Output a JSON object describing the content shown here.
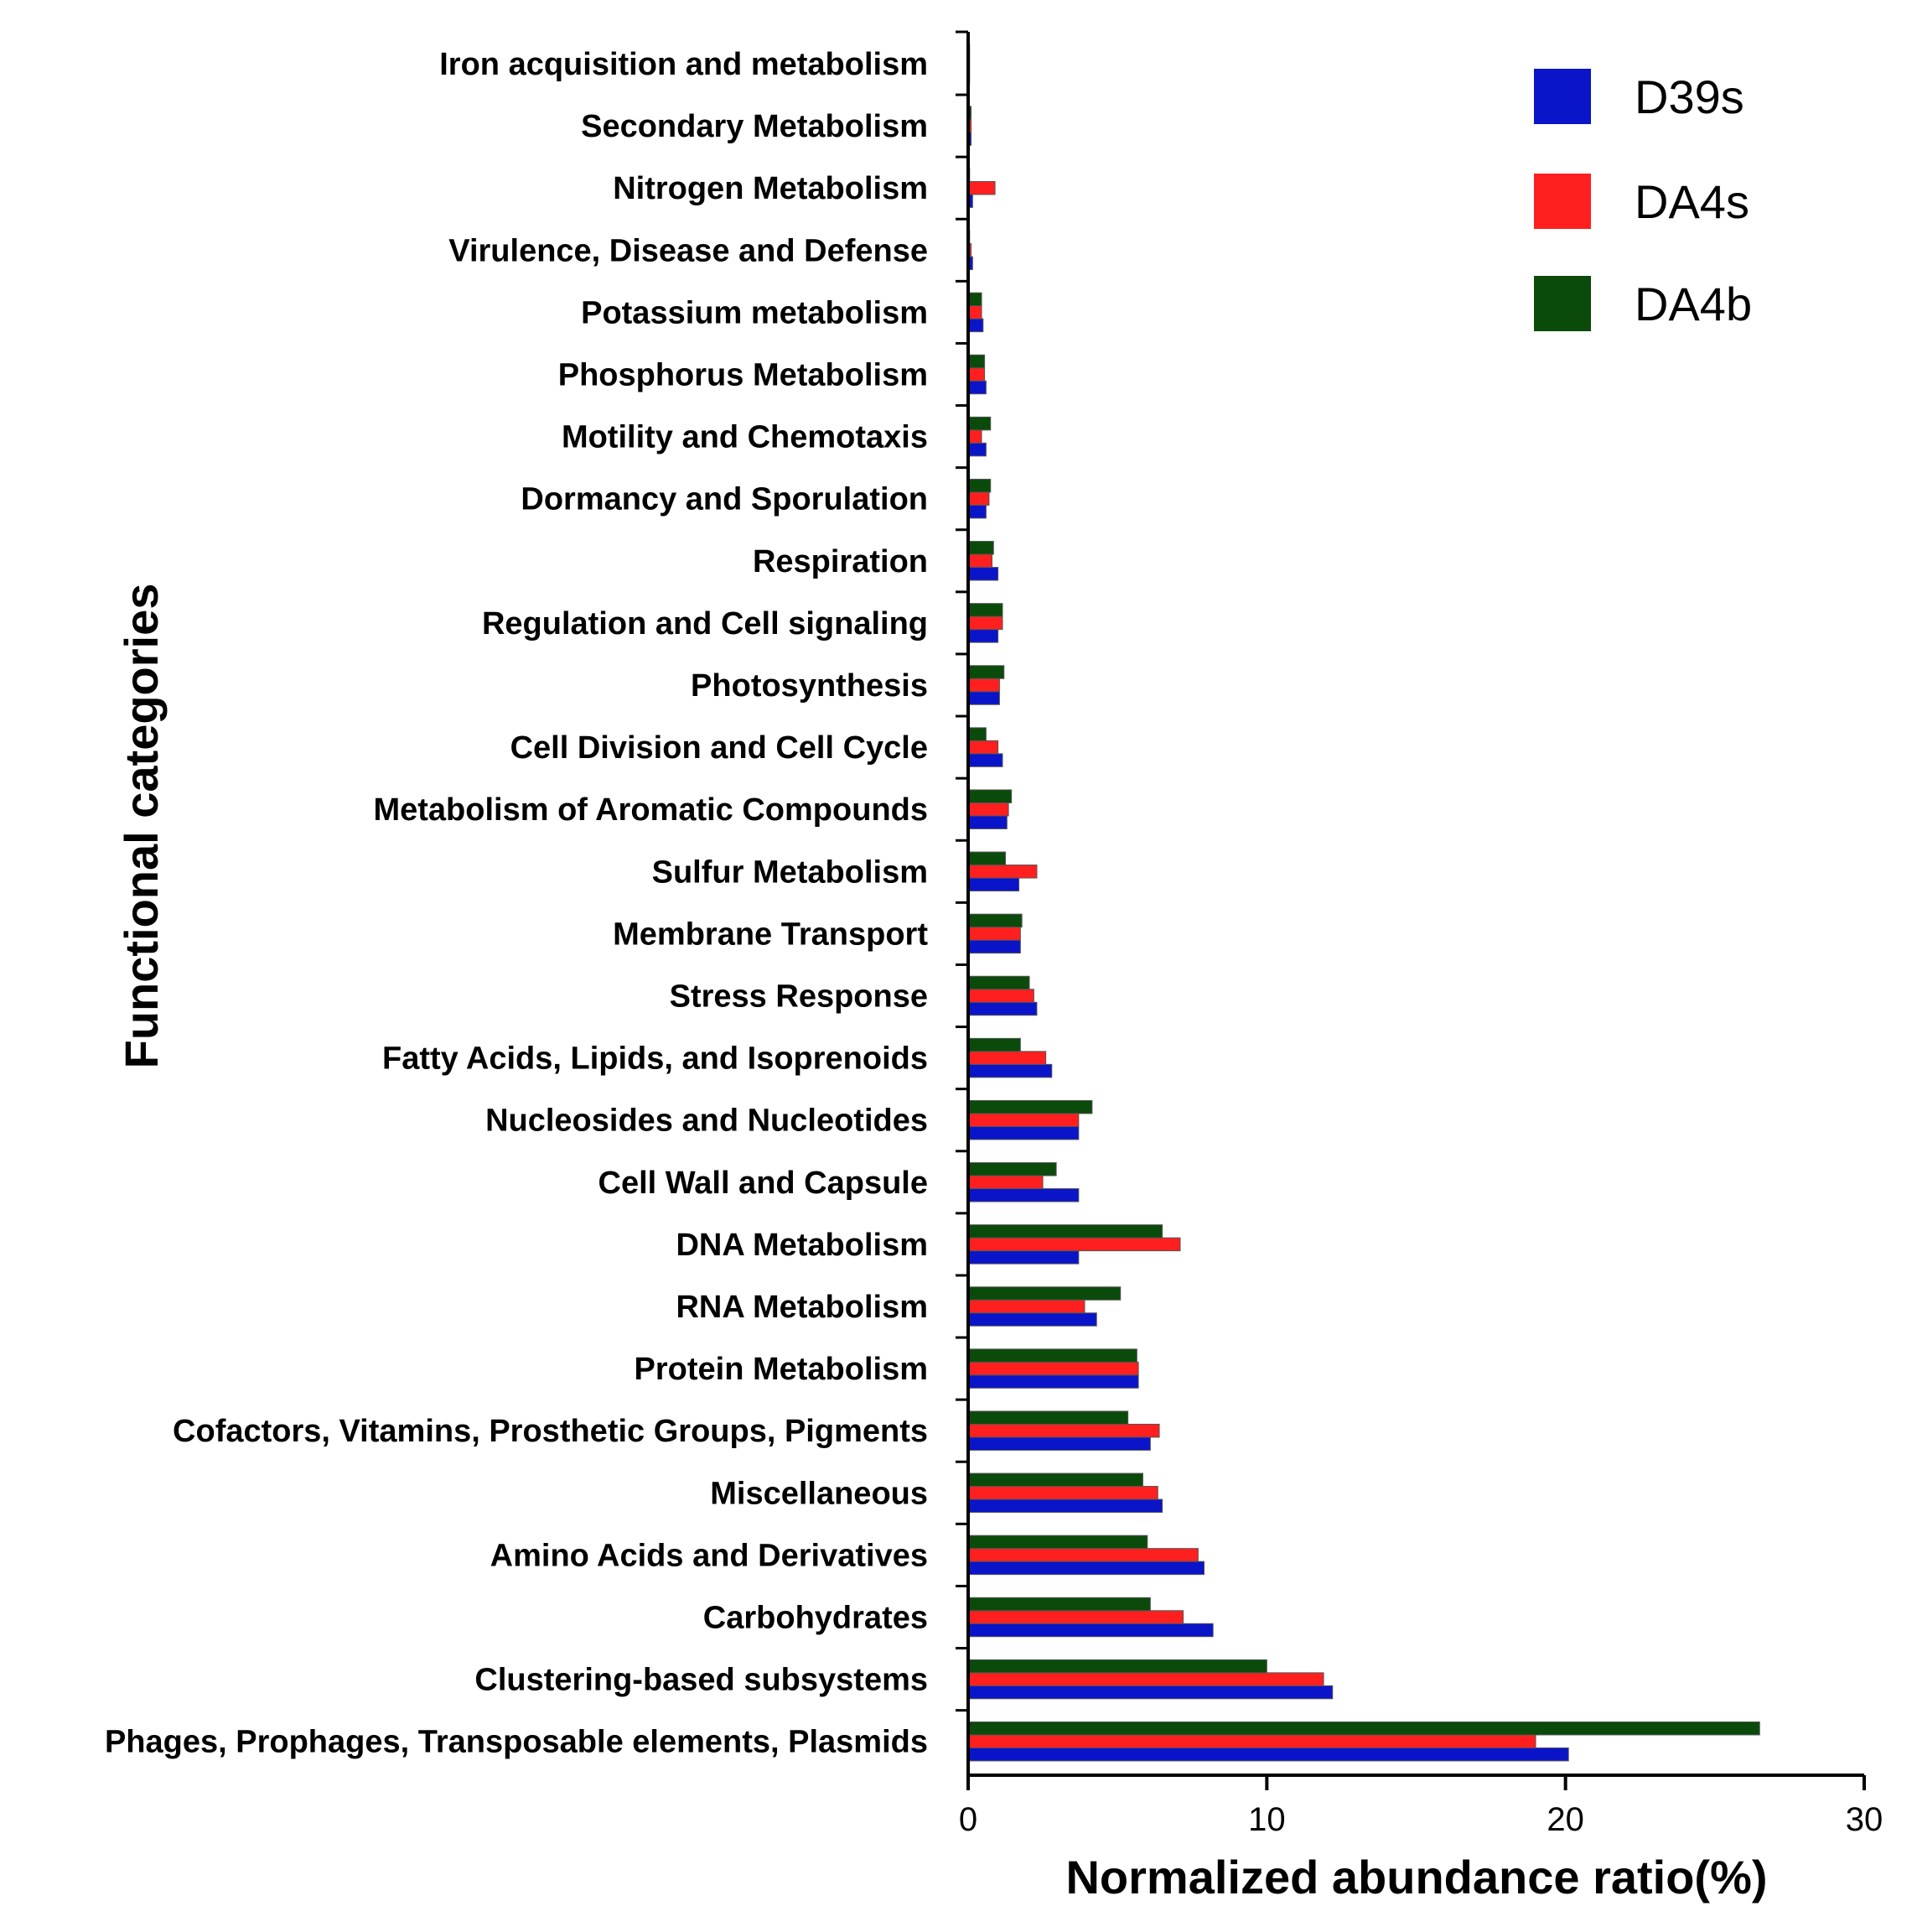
{
  "chart_data": {
    "type": "bar",
    "orientation": "horizontal",
    "title": "",
    "xlabel": "Normalized abundance ratio(%)",
    "ylabel": "Functional categories",
    "xlim": [
      0,
      30
    ],
    "xticks": [
      0,
      10,
      20,
      30
    ],
    "grid": false,
    "legend_position": "top-right",
    "categories": [
      "Iron acquisition and metabolism",
      "Secondary Metabolism",
      "Nitrogen Metabolism",
      "Virulence, Disease and Defense",
      "Potassium metabolism",
      "Phosphorus Metabolism",
      "Motility and Chemotaxis",
      "Dormancy and Sporulation",
      "Respiration",
      "Regulation and Cell signaling",
      "Photosynthesis",
      "Cell Division and Cell Cycle",
      "Metabolism of Aromatic Compounds",
      "Sulfur Metabolism",
      "Membrane Transport",
      "Stress Response",
      "Fatty Acids, Lipids, and Isoprenoids",
      "Nucleosides and Nucleotides",
      "Cell Wall and Capsule",
      "DNA Metabolism",
      "RNA Metabolism",
      "Protein Metabolism",
      "Cofactors, Vitamins, Prosthetic Groups, Pigments",
      "Miscellaneous",
      "Amino Acids and Derivatives",
      "Carbohydrates",
      "Clustering-based subsystems",
      "Phages, Prophages, Transposable elements, Plasmids"
    ],
    "series": [
      {
        "name": "D39s",
        "color": "#0a14c8",
        "values": [
          0.05,
          0.1,
          0.15,
          0.15,
          0.5,
          0.6,
          0.6,
          0.6,
          1.0,
          1.0,
          1.05,
          1.15,
          1.3,
          1.7,
          1.75,
          2.3,
          2.8,
          3.7,
          3.7,
          3.7,
          4.3,
          5.7,
          6.1,
          6.5,
          7.9,
          8.2,
          12.2,
          20.1
        ]
      },
      {
        "name": "DA4s",
        "color": "#ff1f1f",
        "values": [
          0.05,
          0.1,
          0.9,
          0.1,
          0.45,
          0.55,
          0.45,
          0.7,
          0.8,
          1.15,
          1.05,
          1.0,
          1.35,
          2.3,
          1.75,
          2.2,
          2.6,
          3.7,
          2.5,
          7.1,
          3.9,
          5.7,
          6.4,
          6.35,
          7.7,
          7.2,
          11.9,
          19.0
        ]
      },
      {
        "name": "DA4b",
        "color": "#0a4a0a",
        "values": [
          0.05,
          0.1,
          0.05,
          0.05,
          0.45,
          0.55,
          0.75,
          0.75,
          0.85,
          1.15,
          1.2,
          0.6,
          1.45,
          1.25,
          1.8,
          2.05,
          1.75,
          4.15,
          2.95,
          6.5,
          5.1,
          5.65,
          5.35,
          5.85,
          6.0,
          6.1,
          10.0,
          26.5
        ]
      }
    ]
  }
}
